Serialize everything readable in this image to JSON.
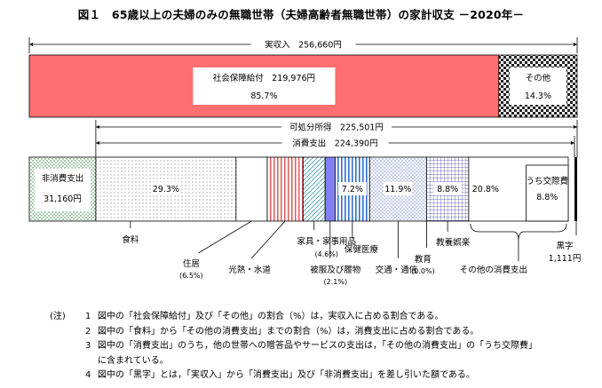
{
  "title": "図１　65歳以上の夫婦のみの無職世帯（夫婦高齢者無職世帯）の家計収支 －2020年－",
  "chart_data": {
    "type": "bar",
    "income_total_label": "実収入　256,660円",
    "income_total": 256660,
    "income_segments": [
      {
        "name": "社会保障給付",
        "value": 219976,
        "label": "社会保障給付　219,976円",
        "pct_label": "85.7%",
        "color": "#ff6f6f"
      },
      {
        "name": "その他",
        "value": 36684,
        "label": "その他",
        "pct_label": "14.3%",
        "color": "#ffffff"
      }
    ],
    "disposable_label": "可処分所得　225,501円",
    "disposable_value": 225501,
    "consumption_label": "消費支出　224,390円",
    "consumption_value": 224390,
    "non_consumption": {
      "label": "非消費支出",
      "value_label": "31,160円",
      "value": 31160
    },
    "expense_segments": [
      {
        "name": "食料",
        "pct": 29.3,
        "pct_label": "29.3%",
        "label": "食料",
        "sub": "",
        "pattern": "dots"
      },
      {
        "name": "住居",
        "pct": 6.5,
        "pct_label": "",
        "label": "住居",
        "sub": "(6.5%)",
        "pattern": "plain"
      },
      {
        "name": "光熱・水道",
        "pct": 7.5,
        "pct_label": "",
        "label": "光熱・水道",
        "sub": "",
        "pattern": "vstripe-red"
      },
      {
        "name": "家具・家事用品",
        "pct": 4.6,
        "pct_label": "",
        "label": "家具・家事用品",
        "sub": "(4.6%)",
        "pattern": "diag"
      },
      {
        "name": "被服及び履物",
        "pct": 2.1,
        "pct_label": "",
        "label": "被服及び履物",
        "sub": "(2.1%)",
        "pattern": "blue"
      },
      {
        "name": "保健医療",
        "pct": 7.2,
        "pct_label": "7.2%",
        "label": "保健医療",
        "sub": "",
        "pattern": "plain"
      },
      {
        "name": "交通・通信",
        "pct": 11.9,
        "pct_label": "11.9%",
        "label": "交通・通信",
        "sub": "",
        "pattern": "dots-blue"
      },
      {
        "name": "教育",
        "pct": 0.0,
        "pct_label": "",
        "label": "教育",
        "sub": "(0.0%)",
        "pattern": "plain"
      },
      {
        "name": "教養娯楽",
        "pct": 8.8,
        "pct_label": "8.8%",
        "label": "教養娯楽",
        "sub": "",
        "pattern": "grid"
      },
      {
        "name": "その他の消費支出",
        "pct": 20.8,
        "pct_label": "20.8%",
        "label": "その他の消費支出",
        "sub": "",
        "pattern": "plain"
      }
    ],
    "social_exchange": {
      "label": "うち交際費",
      "pct_label": "8.8%",
      "pct": 8.8
    },
    "other_consumption_pct_label": "8.8%",
    "surplus": {
      "label": "黒字",
      "value_label": "1,111円",
      "value": 1111
    }
  },
  "notes": {
    "lead": "(注)",
    "items": [
      {
        "num": "1",
        "text": "図中の「社会保障給付」及び「その他」の割合（%）は，実収入に占める割合である。"
      },
      {
        "num": "2",
        "text": "図中の「食料」から「その他の消費支出」までの割合（%）は，消費支出に占める割合である。"
      },
      {
        "num": "3",
        "text": "図中の「消費支出」のうち，他の世帯への贈答品やサービスの支出は，「その他の消費支出」の「うち交際費」"
      },
      {
        "num": "",
        "text": "に含まれている。"
      },
      {
        "num": "4",
        "text": "図中の「黒字」とは，「実収入」から「消費支出」及び「非消費支出」を差し引いた額である。"
      }
    ]
  }
}
